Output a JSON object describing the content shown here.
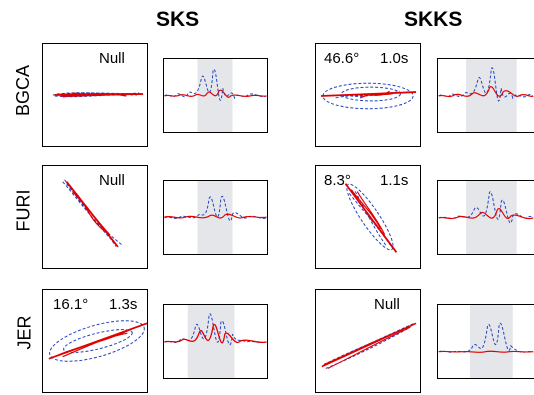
{
  "columns": {
    "sks": "SKS",
    "skks": "SKKS"
  },
  "colors": {
    "corrected": "#e00000",
    "original": "#1f3fbf",
    "window": "#e4e6ea"
  },
  "rows": [
    {
      "station": "BGCA",
      "sks": {
        "result": {
          "label": "Null",
          "angle": "",
          "time": ""
        }
      },
      "skks": {
        "result": {
          "label": "",
          "angle": "46.6°",
          "time": "1.0s"
        }
      }
    },
    {
      "station": "FURI",
      "sks": {
        "result": {
          "label": "Null",
          "angle": "",
          "time": ""
        }
      },
      "skks": {
        "result": {
          "label": "",
          "angle": "8.3°",
          "time": "1.1s"
        }
      }
    },
    {
      "station": "JER",
      "sks": {
        "result": {
          "label": "",
          "angle": "16.1°",
          "time": "1.3s"
        }
      },
      "skks": {
        "result": {
          "label": "Null",
          "angle": "",
          "time": ""
        }
      }
    }
  ]
}
